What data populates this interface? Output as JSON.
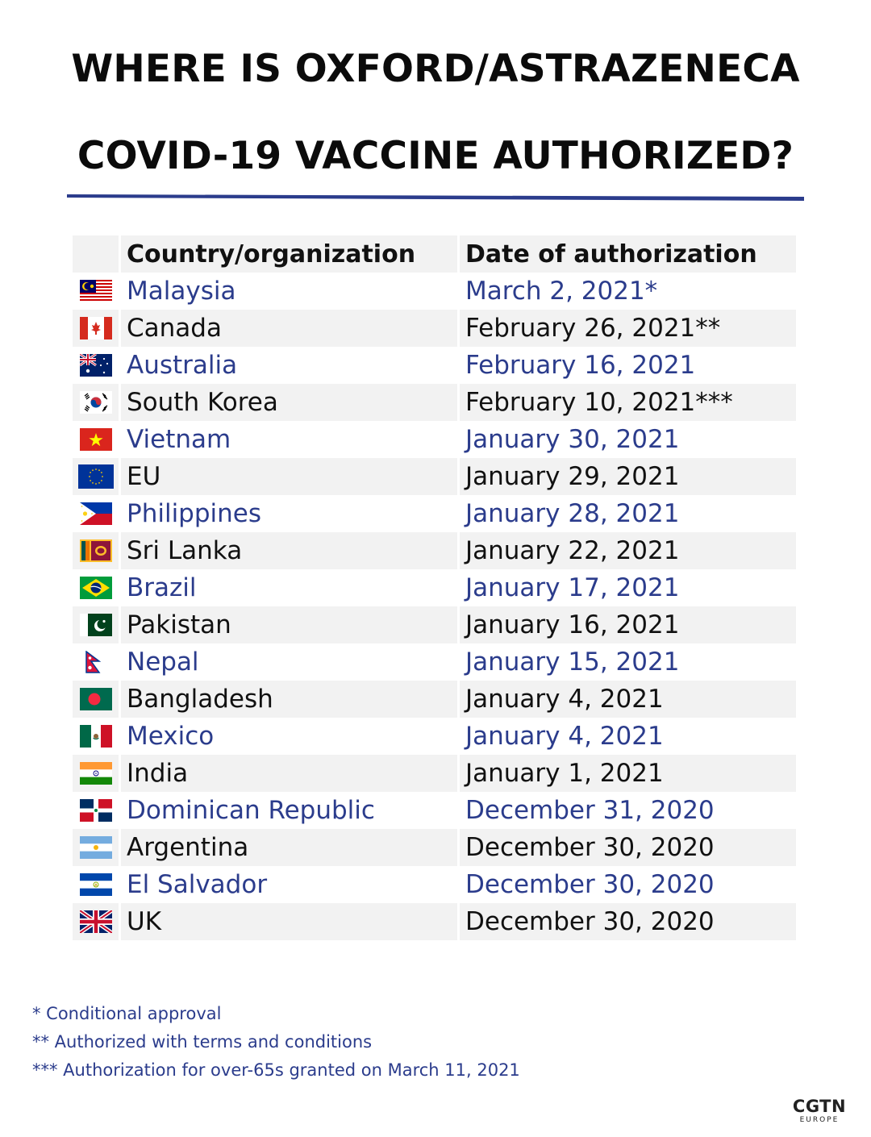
{
  "title": {
    "line1": "WHERE IS OXFORD/ASTRAZENECA",
    "line2": "COVID-19 VACCINE AUTHORIZED?"
  },
  "colors": {
    "accent_blue": "#2b3c8c",
    "row_alt": "#f2f2f2",
    "text_dark": "#111111"
  },
  "table": {
    "headers": {
      "country": "Country/organization",
      "date": "Date of authorization"
    },
    "rows": [
      {
        "flag": "malaysia-flag-icon",
        "country": "Malaysia",
        "date": "March 2, 2021*"
      },
      {
        "flag": "canada-flag-icon",
        "country": "Canada",
        "date": "February 26, 2021**"
      },
      {
        "flag": "australia-flag-icon",
        "country": "Australia",
        "date": "February 16, 2021"
      },
      {
        "flag": "south-korea-flag-icon",
        "country": "South Korea",
        "date": "February 10, 2021***"
      },
      {
        "flag": "vietnam-flag-icon",
        "country": "Vietnam",
        "date": "January 30, 2021"
      },
      {
        "flag": "eu-flag-icon",
        "country": "EU",
        "date": "January 29, 2021"
      },
      {
        "flag": "philippines-flag-icon",
        "country": "Philippines",
        "date": "January 28, 2021"
      },
      {
        "flag": "sri-lanka-flag-icon",
        "country": "Sri Lanka",
        "date": "January 22, 2021"
      },
      {
        "flag": "brazil-flag-icon",
        "country": "Brazil",
        "date": "January 17, 2021"
      },
      {
        "flag": "pakistan-flag-icon",
        "country": "Pakistan",
        "date": "January 16, 2021"
      },
      {
        "flag": "nepal-flag-icon",
        "country": "Nepal",
        "date": "January 15, 2021"
      },
      {
        "flag": "bangladesh-flag-icon",
        "country": "Bangladesh",
        "date": "January 4, 2021"
      },
      {
        "flag": "mexico-flag-icon",
        "country": "Mexico",
        "date": "January 4, 2021"
      },
      {
        "flag": "india-flag-icon",
        "country": "India",
        "date": "January 1, 2021"
      },
      {
        "flag": "dominican-republic-flag-icon",
        "country": "Dominican Republic",
        "date": "December 31, 2020"
      },
      {
        "flag": "argentina-flag-icon",
        "country": "Argentina",
        "date": "December 30, 2020"
      },
      {
        "flag": "el-salvador-flag-icon",
        "country": "El Salvador",
        "date": "December 30, 2020"
      },
      {
        "flag": "uk-flag-icon",
        "country": "UK",
        "date": "December 30, 2020"
      }
    ]
  },
  "notes": [
    "* Conditional approval",
    "** Authorized with terms and conditions",
    "*** Authorization for over-65s granted on March 11, 2021"
  ],
  "logo": {
    "main": "CGTN",
    "sub": "EUROPE"
  }
}
